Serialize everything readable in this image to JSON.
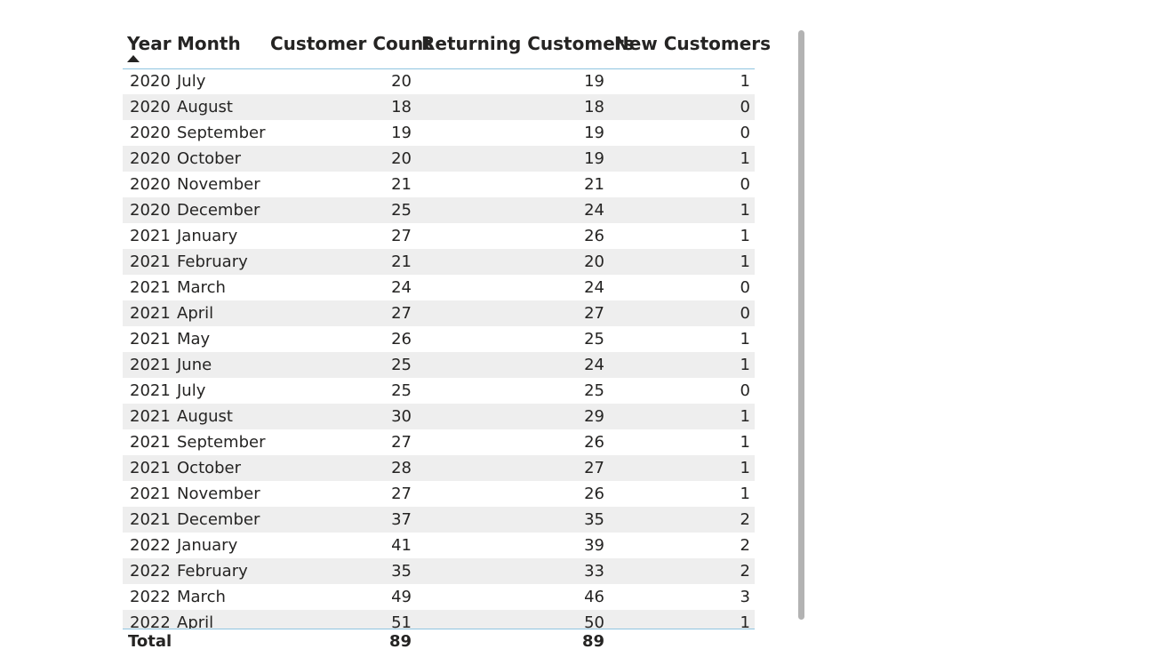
{
  "table": {
    "headers": {
      "year": "Year",
      "month": "Month",
      "customer_count": "Customer Count",
      "returning_customers": "Returning Customers",
      "new_customers": "New Customers"
    },
    "sorted_column": "Year",
    "sort_direction": "ascending",
    "rows": [
      {
        "year": "2020",
        "month": "July",
        "customer_count": "20",
        "returning_customers": "19",
        "new_customers": "1"
      },
      {
        "year": "2020",
        "month": "August",
        "customer_count": "18",
        "returning_customers": "18",
        "new_customers": "0"
      },
      {
        "year": "2020",
        "month": "September",
        "customer_count": "19",
        "returning_customers": "19",
        "new_customers": "0"
      },
      {
        "year": "2020",
        "month": "October",
        "customer_count": "20",
        "returning_customers": "19",
        "new_customers": "1"
      },
      {
        "year": "2020",
        "month": "November",
        "customer_count": "21",
        "returning_customers": "21",
        "new_customers": "0"
      },
      {
        "year": "2020",
        "month": "December",
        "customer_count": "25",
        "returning_customers": "24",
        "new_customers": "1"
      },
      {
        "year": "2021",
        "month": "January",
        "customer_count": "27",
        "returning_customers": "26",
        "new_customers": "1"
      },
      {
        "year": "2021",
        "month": "February",
        "customer_count": "21",
        "returning_customers": "20",
        "new_customers": "1"
      },
      {
        "year": "2021",
        "month": "March",
        "customer_count": "24",
        "returning_customers": "24",
        "new_customers": "0"
      },
      {
        "year": "2021",
        "month": "April",
        "customer_count": "27",
        "returning_customers": "27",
        "new_customers": "0"
      },
      {
        "year": "2021",
        "month": "May",
        "customer_count": "26",
        "returning_customers": "25",
        "new_customers": "1"
      },
      {
        "year": "2021",
        "month": "June",
        "customer_count": "25",
        "returning_customers": "24",
        "new_customers": "1"
      },
      {
        "year": "2021",
        "month": "July",
        "customer_count": "25",
        "returning_customers": "25",
        "new_customers": "0"
      },
      {
        "year": "2021",
        "month": "August",
        "customer_count": "30",
        "returning_customers": "29",
        "new_customers": "1"
      },
      {
        "year": "2021",
        "month": "September",
        "customer_count": "27",
        "returning_customers": "26",
        "new_customers": "1"
      },
      {
        "year": "2021",
        "month": "October",
        "customer_count": "28",
        "returning_customers": "27",
        "new_customers": "1"
      },
      {
        "year": "2021",
        "month": "November",
        "customer_count": "27",
        "returning_customers": "26",
        "new_customers": "1"
      },
      {
        "year": "2021",
        "month": "December",
        "customer_count": "37",
        "returning_customers": "35",
        "new_customers": "2"
      },
      {
        "year": "2022",
        "month": "January",
        "customer_count": "41",
        "returning_customers": "39",
        "new_customers": "2"
      },
      {
        "year": "2022",
        "month": "February",
        "customer_count": "35",
        "returning_customers": "33",
        "new_customers": "2"
      },
      {
        "year": "2022",
        "month": "March",
        "customer_count": "49",
        "returning_customers": "46",
        "new_customers": "3"
      },
      {
        "year": "2022",
        "month": "April",
        "customer_count": "51",
        "returning_customers": "50",
        "new_customers": "1"
      }
    ],
    "total": {
      "label": "Total",
      "customer_count": "89",
      "returning_customers": "89",
      "new_customers": ""
    }
  },
  "colors": {
    "row_alt_background": "#eeeeee",
    "divider": "#8fc4e0",
    "scrollbar": "#b3b3b3",
    "text": "#252423"
  }
}
